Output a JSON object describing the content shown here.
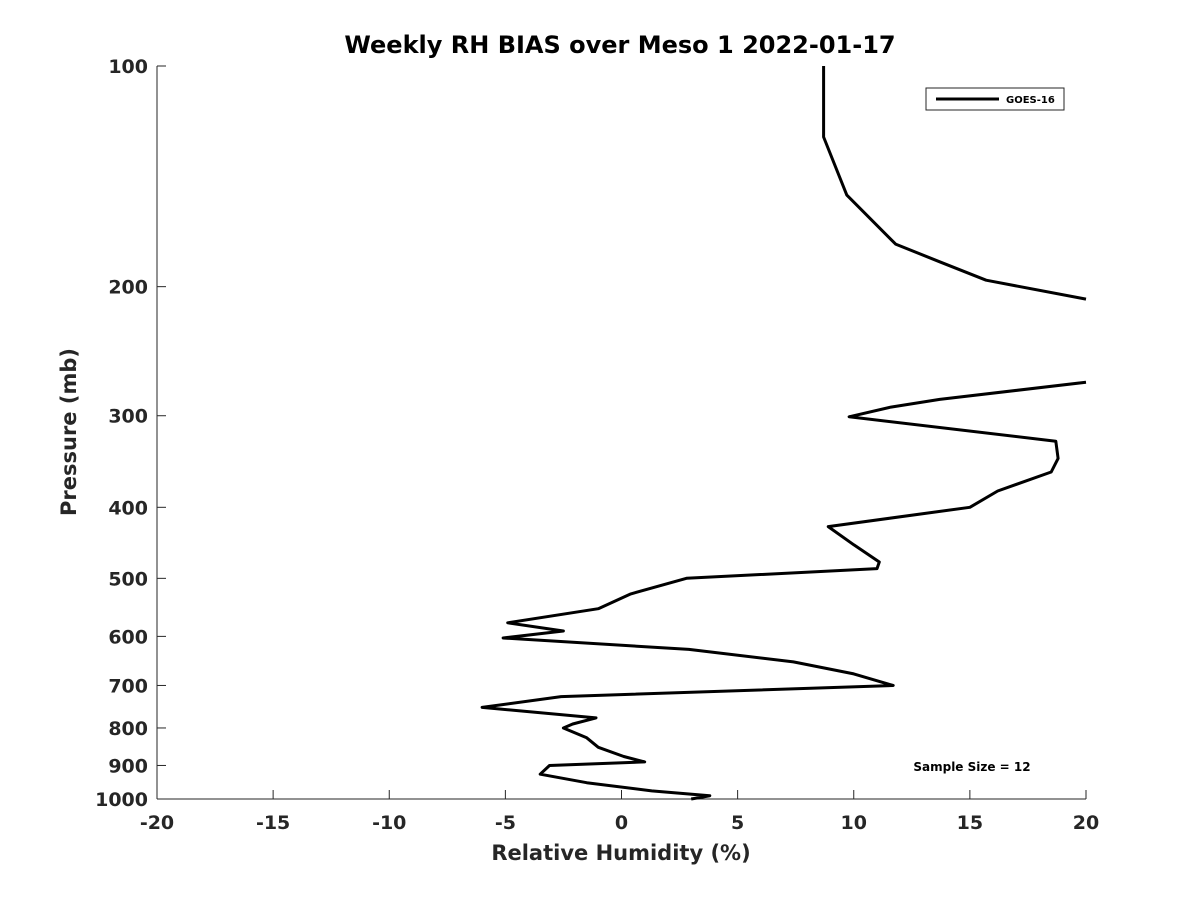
{
  "chart_data": {
    "type": "line",
    "title": "Weekly RH BIAS over Meso 1 2022-01-17",
    "xlabel": "Relative Humidity (%)",
    "ylabel": "Pressure (mb)",
    "xlim": [
      -20,
      20
    ],
    "ylim": [
      100,
      1000
    ],
    "y_scale": "log",
    "y_reversed": true,
    "xticks": [
      -20,
      -15,
      -10,
      -5,
      0,
      5,
      10,
      15,
      20
    ],
    "yticks": [
      100,
      200,
      300,
      400,
      500,
      600,
      700,
      800,
      900,
      1000
    ],
    "grid": false,
    "legend_position": "top-right",
    "annotation": "Sample Size = 12",
    "series": [
      {
        "name": "GOES-16",
        "color": "#000000",
        "segments": [
          [
            {
              "x": 8.7,
              "y": 100
            },
            {
              "x": 8.7,
              "y": 125
            },
            {
              "x": 9.7,
              "y": 150
            },
            {
              "x": 11.8,
              "y": 175
            },
            {
              "x": 13.7,
              "y": 185
            },
            {
              "x": 15.7,
              "y": 196
            },
            {
              "x": 20.0,
              "y": 208
            }
          ],
          [
            {
              "x": 20.0,
              "y": 270
            },
            {
              "x": 13.7,
              "y": 285
            },
            {
              "x": 11.6,
              "y": 292
            },
            {
              "x": 9.8,
              "y": 301
            },
            {
              "x": 18.7,
              "y": 325
            },
            {
              "x": 18.8,
              "y": 343
            },
            {
              "x": 18.5,
              "y": 358
            },
            {
              "x": 16.2,
              "y": 380
            },
            {
              "x": 15.0,
              "y": 400
            },
            {
              "x": 8.9,
              "y": 425
            },
            {
              "x": 10.0,
              "y": 450
            },
            {
              "x": 11.1,
              "y": 475
            },
            {
              "x": 11.0,
              "y": 485
            },
            {
              "x": 2.8,
              "y": 500
            },
            {
              "x": 0.4,
              "y": 525
            },
            {
              "x": -1.0,
              "y": 550
            },
            {
              "x": -4.9,
              "y": 575
            },
            {
              "x": -2.5,
              "y": 590
            },
            {
              "x": -5.1,
              "y": 603
            },
            {
              "x": 2.9,
              "y": 625
            },
            {
              "x": 7.4,
              "y": 650
            },
            {
              "x": 10.0,
              "y": 675
            },
            {
              "x": 11.7,
              "y": 700
            },
            {
              "x": -2.6,
              "y": 725
            },
            {
              "x": -6.0,
              "y": 750
            },
            {
              "x": -1.1,
              "y": 775
            },
            {
              "x": -2.1,
              "y": 790
            },
            {
              "x": -2.5,
              "y": 800
            },
            {
              "x": -1.5,
              "y": 825
            },
            {
              "x": -1.0,
              "y": 850
            },
            {
              "x": 0.1,
              "y": 875
            },
            {
              "x": 1.0,
              "y": 890
            },
            {
              "x": -3.1,
              "y": 900
            },
            {
              "x": -3.5,
              "y": 925
            },
            {
              "x": -1.5,
              "y": 950
            },
            {
              "x": 1.3,
              "y": 975
            },
            {
              "x": 3.8,
              "y": 990
            },
            {
              "x": 3.0,
              "y": 1000
            }
          ]
        ]
      }
    ]
  }
}
